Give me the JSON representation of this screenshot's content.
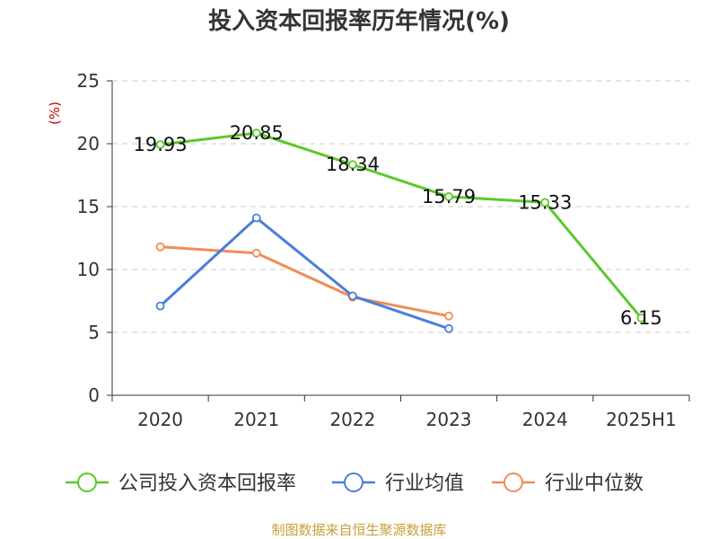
{
  "chart_data": {
    "type": "line",
    "title": "投入资本回报率历年情况(%)",
    "ylabel": "(%)",
    "xlabel": "",
    "categories": [
      "2020",
      "2021",
      "2022",
      "2023",
      "2024",
      "2025H1"
    ],
    "ylim": [
      0,
      25
    ],
    "yticks": [
      0,
      5,
      10,
      15,
      20,
      25
    ],
    "grid": "horizontal-dashed",
    "legend_position": "bottom",
    "series": [
      {
        "name": "公司投入资本回报率",
        "color": "#5cc82a",
        "values": [
          19.93,
          20.85,
          18.34,
          15.79,
          15.33,
          6.15
        ],
        "labels": [
          "19.93",
          "20.85",
          "18.34",
          "15.79",
          "15.33",
          "6.15"
        ]
      },
      {
        "name": "行业均值",
        "color": "#4a7fd9",
        "values": [
          7.1,
          14.1,
          7.9,
          5.3,
          null,
          null
        ]
      },
      {
        "name": "行业中位数",
        "color": "#f28c55",
        "values": [
          11.8,
          11.3,
          7.8,
          6.3,
          null,
          null
        ]
      }
    ]
  },
  "source": "制图数据来自恒生聚源数据库"
}
